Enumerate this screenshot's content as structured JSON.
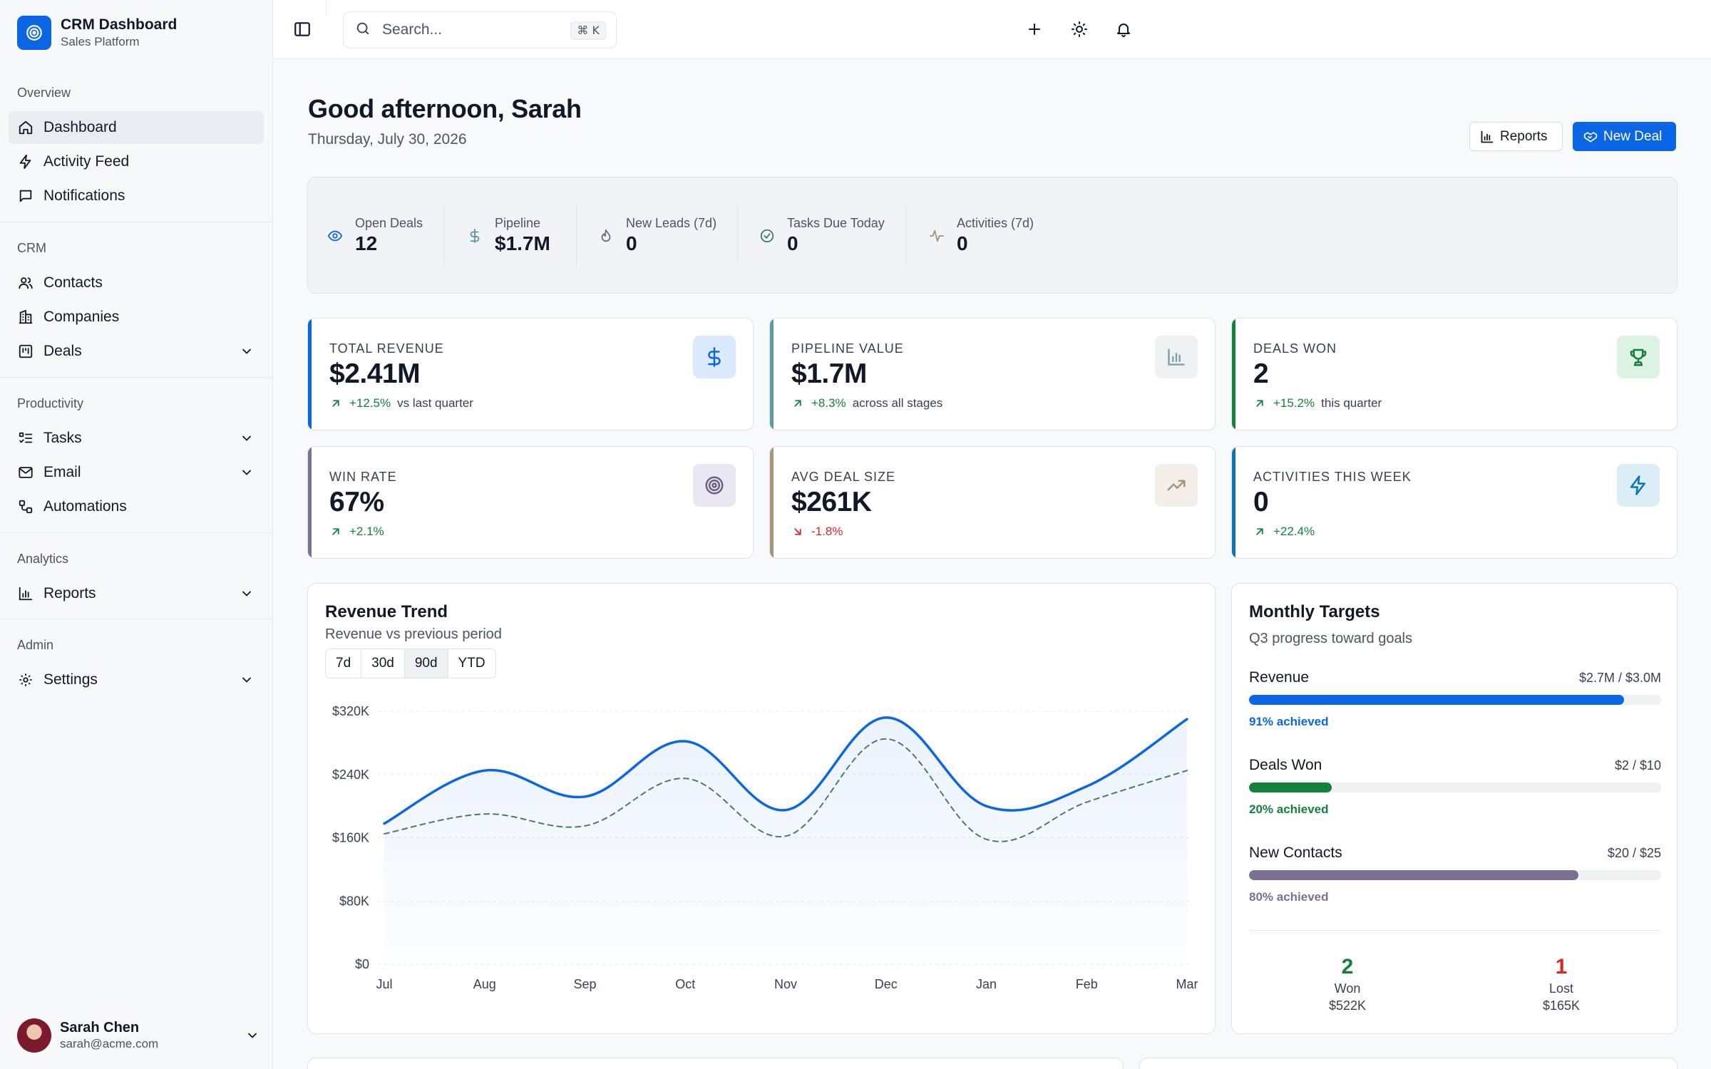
{
  "brand": {
    "title": "CRM Dashboard",
    "subtitle": "Sales Platform"
  },
  "sidebar": {
    "groups": [
      {
        "label": "Overview",
        "items": [
          {
            "label": "Dashboard",
            "icon": "home-icon",
            "active": true
          },
          {
            "label": "Activity Feed",
            "icon": "zap-icon"
          },
          {
            "label": "Notifications",
            "icon": "message-square-icon"
          }
        ]
      },
      {
        "label": "CRM",
        "items": [
          {
            "label": "Contacts",
            "icon": "users-icon"
          },
          {
            "label": "Companies",
            "icon": "building-icon"
          },
          {
            "label": "Deals",
            "icon": "kanban-icon",
            "expandable": true
          }
        ]
      },
      {
        "label": "Productivity",
        "items": [
          {
            "label": "Tasks",
            "icon": "list-todo-icon",
            "expandable": true
          },
          {
            "label": "Email",
            "icon": "mail-icon",
            "expandable": true
          },
          {
            "label": "Automations",
            "icon": "workflow-icon"
          }
        ]
      },
      {
        "label": "Analytics",
        "items": [
          {
            "label": "Reports",
            "icon": "bar-chart-icon",
            "expandable": true
          }
        ]
      },
      {
        "label": "Admin",
        "items": [
          {
            "label": "Settings",
            "icon": "gear-icon",
            "expandable": true
          }
        ]
      }
    ],
    "user": {
      "name": "Sarah Chen",
      "email": "sarah@acme.com"
    }
  },
  "topbar": {
    "search_placeholder": "Search...",
    "shortcut": "⌘ K"
  },
  "header": {
    "greeting": "Good afternoon, Sarah",
    "date": "Thursday, July 30, 2026",
    "reports_button": "Reports",
    "new_deal_button": "New Deal"
  },
  "quick_stats": [
    {
      "label": "Open Deals",
      "value": "12",
      "icon": "eye-icon"
    },
    {
      "label": "Pipeline",
      "value": "$1.7M",
      "icon": "dollar-icon"
    },
    {
      "label": "New Leads (7d)",
      "value": "0",
      "icon": "flame-icon"
    },
    {
      "label": "Tasks Due Today",
      "value": "0",
      "icon": "check-circle-icon"
    },
    {
      "label": "Activities (7d)",
      "value": "0",
      "icon": "activity-icon"
    }
  ],
  "kpis": [
    {
      "label": "TOTAL REVENUE",
      "value": "$2.41M",
      "delta": "+12.5%",
      "sub": "vs last quarter",
      "trend": "up",
      "accent": "#0a66e4",
      "icon": "dollar-icon",
      "icon_bg": "#dbeafe",
      "icon_color": "#0a66e4"
    },
    {
      "label": "PIPELINE VALUE",
      "value": "$1.7M",
      "delta": "+8.3%",
      "sub": "across all stages",
      "trend": "up",
      "accent": "#5b9aa0",
      "icon": "bar-chart-icon",
      "icon_bg": "#eef2f3",
      "icon_color": "#7b9ea4"
    },
    {
      "label": "DEALS WON",
      "value": "2",
      "delta": "+15.2%",
      "sub": "this quarter",
      "trend": "up",
      "accent": "#15803d",
      "icon": "trophy-icon",
      "icon_bg": "#dcf2e3",
      "icon_color": "#15803d"
    },
    {
      "label": "WIN RATE",
      "value": "67%",
      "delta": "+2.1%",
      "sub": "",
      "trend": "up",
      "accent": "#7b6f94",
      "icon": "target-icon",
      "icon_bg": "#e9e7ef",
      "icon_color": "#6b5f86"
    },
    {
      "label": "AVG DEAL SIZE",
      "value": "$261K",
      "delta": "-1.8%",
      "sub": "",
      "trend": "down",
      "accent": "#a89478",
      "icon": "trending-up-icon",
      "icon_bg": "#f3efe8",
      "icon_color": "#a89478"
    },
    {
      "label": "ACTIVITIES THIS WEEK",
      "value": "0",
      "delta": "+22.4%",
      "sub": "",
      "trend": "up",
      "accent": "#0b74b8",
      "icon": "zap-icon",
      "icon_bg": "#dbeef8",
      "icon_color": "#0b74b8"
    }
  ],
  "revenue_trend": {
    "title": "Revenue Trend",
    "subtitle": "Revenue vs previous period",
    "ranges": [
      "7d",
      "30d",
      "90d",
      "YTD"
    ],
    "active_range": "90d"
  },
  "chart_data": {
    "type": "line",
    "categories": [
      "Jul",
      "Aug",
      "Sep",
      "Oct",
      "Nov",
      "Dec",
      "Jan",
      "Feb",
      "Mar"
    ],
    "series": [
      {
        "values": [
          178000,
          245000,
          212000,
          282000,
          195000,
          312000,
          200000,
          225000,
          310000
        ],
        "color": "#0a66e4",
        "style": "solid",
        "area": true
      },
      {
        "values": [
          165000,
          190000,
          175000,
          235000,
          162000,
          285000,
          158000,
          205000,
          245000
        ],
        "color": "#4a7a6d",
        "style": "dashed"
      }
    ],
    "y_ticks": [
      "$0",
      "$80K",
      "$160K",
      "$240K",
      "$320K"
    ],
    "ylim": [
      0,
      320000
    ],
    "grid": true
  },
  "monthly_targets": {
    "title": "Monthly Targets",
    "subtitle": "Q3 progress toward goals",
    "items": [
      {
        "name": "Revenue",
        "value": "$2.7M / $3.0M",
        "achieved": "91% achieved",
        "progress": 0.91,
        "color": "#0a66e4"
      },
      {
        "name": "Deals Won",
        "value": "$2 / $10",
        "achieved": "20% achieved",
        "progress": 0.2,
        "color": "#15803d"
      },
      {
        "name": "New Contacts",
        "value": "$20 / $25",
        "achieved": "80% achieved",
        "progress": 0.8,
        "color": "#7b6f94"
      }
    ],
    "won": {
      "count": "2",
      "label": "Won",
      "amount": "$522K"
    },
    "lost": {
      "count": "1",
      "label": "Lost",
      "amount": "$165K"
    }
  }
}
